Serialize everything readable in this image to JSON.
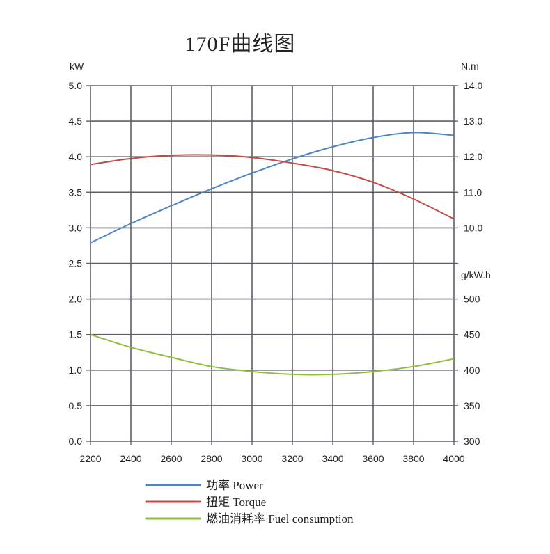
{
  "chart_data": {
    "type": "line",
    "title": "170F曲线图",
    "x_ticks": [
      "2200",
      "2400",
      "2600",
      "2800",
      "3000",
      "3200",
      "3400",
      "3600",
      "3800",
      "4000"
    ],
    "xlim": [
      2200,
      4000
    ],
    "grid": true,
    "legend_position": "bottom",
    "axes": {
      "left": {
        "unit": "kW",
        "range": [
          0,
          5
        ],
        "ticks": [
          "0.0",
          "0.5",
          "1.0",
          "1.5",
          "2.0",
          "2.5",
          "3.0",
          "3.5",
          "4.0",
          "4.5",
          "5.0"
        ]
      },
      "right_torque": {
        "unit": "N.m",
        "range": [
          10,
          14
        ],
        "ticks": [
          "10.0",
          "11.0",
          "12.0",
          "13.0",
          "14.0"
        ]
      },
      "right_fuel": {
        "unit": "g/kW.h",
        "range": [
          300,
          500
        ],
        "ticks": [
          "300",
          "350",
          "400",
          "450",
          "500"
        ]
      }
    },
    "series": [
      {
        "name": "功率 Power",
        "color": "#4a86c8",
        "axis": "left",
        "x": [
          2200,
          2400,
          2600,
          2800,
          3000,
          3200,
          3400,
          3600,
          3800,
          4000
        ],
        "y": [
          2.79,
          3.06,
          3.31,
          3.55,
          3.77,
          3.97,
          4.14,
          4.27,
          4.34,
          4.3
        ]
      },
      {
        "name": "扭矩 Torque",
        "color": "#c44a44",
        "axis": "right_torque",
        "x": [
          2200,
          2400,
          2600,
          2800,
          3000,
          3200,
          3400,
          3600,
          3800,
          4000
        ],
        "y": [
          11.78,
          11.95,
          12.04,
          12.05,
          11.98,
          11.82,
          11.61,
          11.28,
          10.81,
          10.25
        ]
      },
      {
        "name": "燃油消耗率 Fuel consumption",
        "color": "#8cbf3f",
        "axis": "right_fuel",
        "x": [
          2200,
          2400,
          2600,
          2800,
          3000,
          3200,
          3400,
          3600,
          3800,
          4000
        ],
        "y": [
          450,
          432,
          418,
          405,
          398,
          394,
          394,
          398,
          405,
          416
        ]
      }
    ]
  }
}
